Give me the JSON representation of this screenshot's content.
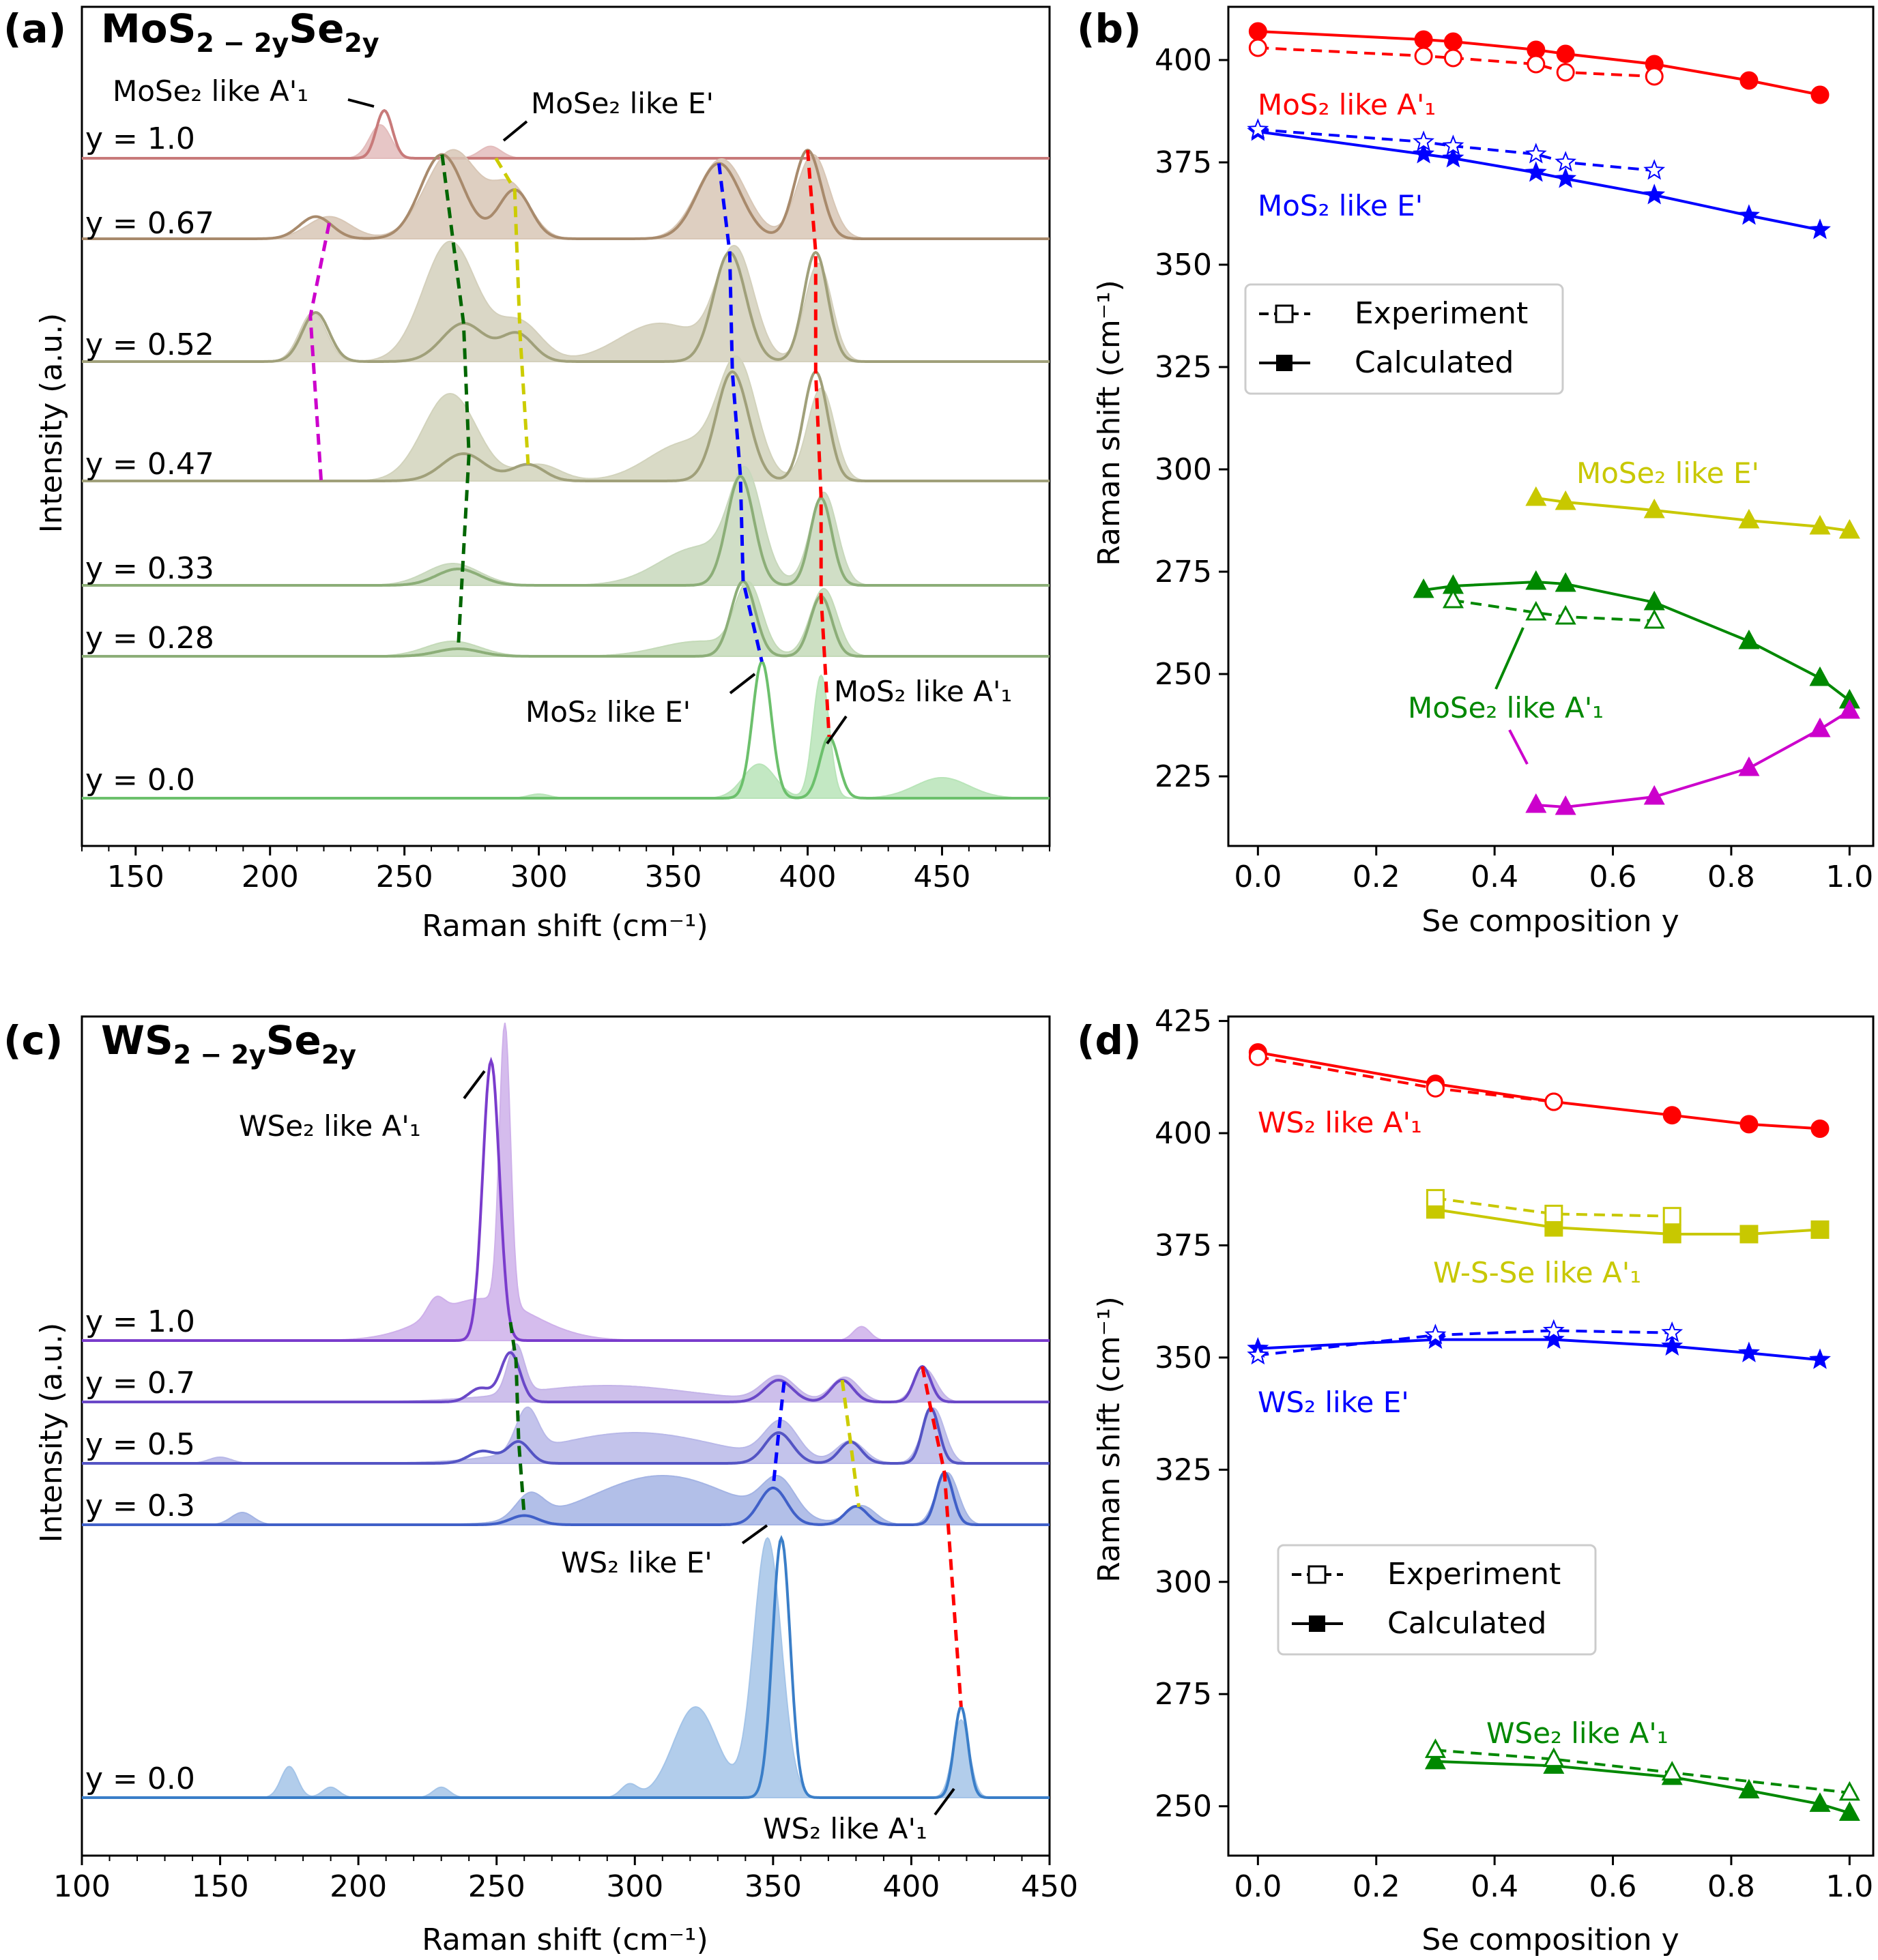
{
  "figure": {
    "panels": {
      "a": {
        "letter": "(a)",
        "title_main": "MoS",
        "title_sub1": "2 − 2y",
        "title_mid": "Se",
        "title_sub2": "2y"
      },
      "b": {
        "letter": "(b)"
      },
      "c": {
        "letter": "(c)",
        "title_main": "WS",
        "title_sub1": "2 − 2y",
        "title_mid": "Se",
        "title_sub2": "2y"
      },
      "d": {
        "letter": "(d)"
      }
    },
    "legend": {
      "experiment": "Experiment",
      "calculated": "Calculated"
    }
  },
  "chart_data": [
    {
      "id": "a",
      "type": "line",
      "xlabel": "Raman shift (cm⁻¹)",
      "ylabel": "Intensity (a.u.)",
      "xlim": [
        130,
        490
      ],
      "xticks": [
        150,
        200,
        250,
        300,
        350,
        400,
        450
      ],
      "offsets": [
        {
          "label": "y = 1.0",
          "color": "#c87a7a",
          "fill": "#e3bcbc",
          "peaks": [
            [
              242.5,
              1.0,
              3.0
            ]
          ],
          "fill_peaks": [
            [
              241,
              0.7,
              4
            ],
            [
              282,
              0.25,
              4
            ]
          ]
        },
        {
          "label": "y = 0.67",
          "color": "#a88a6c",
          "fill": "#d8c7b6",
          "peaks": [
            [
              217,
              0.25,
              6
            ],
            [
              264,
              0.95,
              8
            ],
            [
              291,
              0.55,
              6
            ],
            [
              367,
              0.85,
              8
            ],
            [
              400,
              1.0,
              5
            ]
          ],
          "fill_peaks": [
            [
              222,
              0.25,
              8
            ],
            [
              268,
              1.0,
              10
            ],
            [
              290,
              0.55,
              7
            ],
            [
              368,
              0.9,
              9
            ],
            [
              402,
              0.95,
              6
            ]
          ]
        },
        {
          "label": "y = 0.52",
          "color": "#a0a07a",
          "fill": "#d4d0bc",
          "peaks": [
            [
              217,
              0.45,
              5
            ],
            [
              272,
              0.35,
              8
            ],
            [
              292,
              0.25,
              6
            ],
            [
              371,
              1.0,
              6
            ],
            [
              403,
              1.0,
              4.5
            ]
          ],
          "fill_peaks": [
            [
              216,
              0.45,
              5
            ],
            [
              267,
              1.1,
              10
            ],
            [
              293,
              0.35,
              8
            ],
            [
              345,
              0.35,
              15
            ],
            [
              373,
              1.0,
              7
            ],
            [
              404,
              0.9,
              5
            ]
          ]
        },
        {
          "label": "y = 0.47",
          "color": "#a0a07a",
          "fill": "#d2d3bc",
          "peaks": [
            [
              272,
              0.25,
              8
            ],
            [
              296,
              0.15,
              6
            ],
            [
              372,
              1.0,
              6
            ],
            [
              403,
              1.0,
              4.5
            ]
          ],
          "fill_peaks": [
            [
              267,
              0.8,
              10
            ],
            [
              300,
              0.15,
              8
            ],
            [
              355,
              0.35,
              14
            ],
            [
              374,
              1.0,
              7
            ],
            [
              405,
              0.85,
              5
            ]
          ]
        },
        {
          "label": "y = 0.33",
          "color": "#8cae78",
          "fill": "#c8d8bc",
          "peaks": [
            [
              270,
              0.15,
              8
            ],
            [
              375,
              1.0,
              5
            ],
            [
              405,
              0.8,
              4
            ]
          ],
          "fill_peaks": [
            [
              268,
              0.2,
              10
            ],
            [
              360,
              0.35,
              15
            ],
            [
              377,
              0.9,
              6
            ],
            [
              406,
              0.85,
              5
            ]
          ]
        },
        {
          "label": "y = 0.28",
          "color": "#8cae78",
          "fill": "#c4dab8",
          "peaks": [
            [
              270,
              0.1,
              8
            ],
            [
              376,
              1.0,
              4.5
            ],
            [
              405,
              0.8,
              4
            ]
          ],
          "fill_peaks": [
            [
              268,
              0.2,
              10
            ],
            [
              360,
              0.2,
              15
            ],
            [
              378,
              0.9,
              5
            ],
            [
              406,
              0.9,
              5
            ]
          ]
        },
        {
          "label": "y = 0.0",
          "color": "#6cc06c",
          "fill": "#b8e4b8",
          "peaks": [
            [
              383,
              1.0,
              3.5
            ],
            [
              408,
              0.45,
              3.5
            ]
          ],
          "fill_peaks": [
            [
              382,
              0.25,
              6
            ],
            [
              405,
              0.9,
              3
            ],
            [
              450,
              0.15,
              10
            ],
            [
              300,
              0.03,
              4
            ]
          ]
        }
      ],
      "annotations": [
        "MoSe₂ like A'₁",
        "MoSe₂ like E'",
        "MoS₂ like E'",
        "MoS₂ like A'₁"
      ]
    },
    {
      "id": "b",
      "type": "line",
      "xlabel": "Se composition y",
      "ylabel": "Raman shift (cm⁻¹)",
      "xlim": [
        -0.05,
        1.04
      ],
      "ylim": [
        208,
        413
      ],
      "xticks": [
        0.0,
        0.2,
        0.4,
        0.6,
        0.8,
        1.0
      ],
      "yticks": [
        225,
        250,
        275,
        300,
        325,
        350,
        375,
        400
      ],
      "series": [
        {
          "name": "MoS₂ like A'₁",
          "color": "#ff0000",
          "marker": "circle",
          "calc": {
            "x": [
              0.0,
              0.28,
              0.33,
              0.47,
              0.52,
              0.67,
              0.83,
              0.95
            ],
            "y": [
              407,
              405,
              404.5,
              402.5,
              401.5,
              399,
              395,
              391.5
            ]
          },
          "exp": {
            "x": [
              0.0,
              0.28,
              0.33,
              0.47,
              0.52,
              0.67
            ],
            "y": [
              403,
              401,
              400.5,
              399,
              397,
              396
            ]
          }
        },
        {
          "name": "MoS₂ like E'",
          "color": "#0000ff",
          "marker": "star",
          "calc": {
            "x": [
              0.0,
              0.28,
              0.33,
              0.47,
              0.52,
              0.67,
              0.83,
              0.95
            ],
            "y": [
              382.5,
              377,
              376,
              372.5,
              371,
              367,
              362,
              358.5
            ]
          },
          "exp": {
            "x": [
              0.0,
              0.28,
              0.33,
              0.47,
              0.52,
              0.67
            ],
            "y": [
              383,
              380,
              379,
              377,
              375,
              373
            ]
          }
        },
        {
          "name": "MoSe₂ like E'",
          "color": "#c8c800",
          "marker": "triangle",
          "calc": {
            "x": [
              0.47,
              0.52,
              0.67,
              0.83,
              0.95,
              1.0
            ],
            "y": [
              293,
              292,
              290,
              287.5,
              286,
              285
            ]
          }
        },
        {
          "name": "MoSe₂ like A'₁",
          "color": "#008800",
          "marker": "triangle",
          "calc": {
            "x": [
              0.28,
              0.33,
              0.47,
              0.52,
              0.67,
              0.83,
              0.95,
              1.0
            ],
            "y": [
              270.5,
              271.5,
              272.5,
              272,
              267.5,
              258,
              249,
              243.5
            ]
          },
          "exp": {
            "x": [
              0.33,
              0.47,
              0.52,
              0.67
            ],
            "y": [
              268,
              265,
              264,
              263
            ]
          }
        },
        {
          "name": "",
          "color": "#cc00cc",
          "marker": "triangle",
          "calc": {
            "x": [
              0.47,
              0.52,
              0.67,
              0.83,
              0.95,
              1.0
            ],
            "y": [
              218,
              217.5,
              220,
              227,
              236.5,
              241
            ]
          }
        }
      ],
      "legend": "center-left"
    },
    {
      "id": "c",
      "type": "line",
      "xlabel": "Raman shift (cm⁻¹)",
      "ylabel": "Intensity (a.u.)",
      "xlim": [
        100,
        450
      ],
      "xticks": [
        100,
        150,
        200,
        250,
        300,
        350,
        400,
        450
      ],
      "offsets": [
        {
          "label": "y = 1.0",
          "color": "#7a3ccc",
          "fill": "#ceb0ea",
          "peaks": [
            [
              248,
              1.0,
              3.0
            ]
          ],
          "fill_peaks": [
            [
              253,
              1.0,
              2.0
            ],
            [
              245,
              0.15,
              18
            ],
            [
              228,
              0.06,
              3
            ],
            [
              382,
              0.05,
              3
            ]
          ]
        },
        {
          "label": "y = 0.7",
          "color": "#6a48c8",
          "fill": "#c4b4e8",
          "peaks": [
            [
              244,
              0.25,
              4
            ],
            [
              255,
              0.9,
              3.5
            ],
            [
              352,
              0.4,
              5
            ],
            [
              375,
              0.4,
              4
            ],
            [
              404,
              0.65,
              3
            ]
          ],
          "fill_peaks": [
            [
              257,
              0.9,
              3
            ],
            [
              290,
              0.3,
              30
            ],
            [
              352,
              0.45,
              6
            ],
            [
              376,
              0.45,
              5
            ],
            [
              405,
              0.6,
              4
            ]
          ]
        },
        {
          "label": "y = 0.5",
          "color": "#5454c4",
          "fill": "#b8b8e8",
          "peaks": [
            [
              245,
              0.2,
              5
            ],
            [
              258,
              0.35,
              4
            ],
            [
              352,
              0.5,
              5
            ],
            [
              378,
              0.35,
              4
            ],
            [
              407,
              0.9,
              3
            ]
          ],
          "fill_peaks": [
            [
              261,
              0.7,
              4
            ],
            [
              300,
              0.5,
              30
            ],
            [
              353,
              0.6,
              6
            ],
            [
              378,
              0.35,
              5
            ],
            [
              408,
              0.9,
              4
            ],
            [
              150,
              0.1,
              4
            ]
          ]
        },
        {
          "label": "y = 0.3",
          "color": "#4060c8",
          "fill": "#a4b4e4",
          "peaks": [
            [
              260,
              0.15,
              5
            ],
            [
              350,
              0.6,
              5
            ],
            [
              380,
              0.3,
              4
            ],
            [
              412,
              0.85,
              3
            ]
          ],
          "fill_peaks": [
            [
              262,
              0.4,
              5
            ],
            [
              310,
              0.8,
              25
            ],
            [
              352,
              0.6,
              6
            ],
            [
              382,
              0.3,
              5
            ],
            [
              413,
              0.85,
              4
            ],
            [
              158,
              0.2,
              4
            ]
          ]
        },
        {
          "label": "y = 0.0",
          "color": "#3a7ec8",
          "fill": "#a4c4e8",
          "peaks": [
            [
              353,
              1.0,
              3.2
            ],
            [
              418,
              0.35,
              2.5
            ]
          ],
          "fill_peaks": [
            [
              348,
              1.0,
              5
            ],
            [
              322,
              0.35,
              8
            ],
            [
              298,
              0.05,
              3
            ],
            [
              418,
              0.3,
              3
            ],
            [
              175,
              0.12,
              3
            ],
            [
              190,
              0.04,
              3
            ],
            [
              230,
              0.04,
              3
            ]
          ]
        }
      ],
      "annotations": [
        "WSe₂ like A'₁",
        "WS₂ like E'",
        "WS₂ like A'₁"
      ]
    },
    {
      "id": "d",
      "type": "line",
      "xlabel": "Se composition y",
      "ylabel": "Raman shift (cm⁻¹)",
      "xlim": [
        -0.05,
        1.04
      ],
      "ylim": [
        239,
        426
      ],
      "xticks": [
        0.0,
        0.2,
        0.4,
        0.6,
        0.8,
        1.0
      ],
      "yticks": [
        250,
        275,
        300,
        325,
        350,
        375,
        400,
        425
      ],
      "series": [
        {
          "name": "WS₂ like A'₁",
          "color": "#ff0000",
          "marker": "circle",
          "calc": {
            "x": [
              0.0,
              0.3,
              0.5,
              0.7,
              0.83,
              0.95
            ],
            "y": [
              418,
              411,
              407,
              404,
              402,
              401
            ]
          },
          "exp": {
            "x": [
              0.0,
              0.3,
              0.5
            ],
            "y": [
              417,
              410,
              407
            ]
          }
        },
        {
          "name": "W-S-Se like A'₁",
          "color": "#c8c800",
          "marker": "square",
          "calc": {
            "x": [
              0.3,
              0.5,
              0.7,
              0.83,
              0.95
            ],
            "y": [
              383,
              379,
              377.5,
              377.5,
              378.5
            ]
          },
          "exp": {
            "x": [
              0.3,
              0.5,
              0.7
            ],
            "y": [
              385.5,
              382,
              381.5
            ]
          }
        },
        {
          "name": "WS₂ like E'",
          "color": "#0000ff",
          "marker": "star",
          "calc": {
            "x": [
              0.0,
              0.3,
              0.5,
              0.7,
              0.83,
              0.95
            ],
            "y": [
              352,
              354,
              354,
              352.5,
              351,
              349.5
            ]
          },
          "exp": {
            "x": [
              0.0,
              0.3,
              0.5,
              0.7
            ],
            "y": [
              350.5,
              355,
              356,
              355.5
            ]
          }
        },
        {
          "name": "WSe₂ like A'₁",
          "color": "#008800",
          "marker": "triangle",
          "calc": {
            "x": [
              0.3,
              0.5,
              0.7,
              0.83,
              0.95,
              1.0
            ],
            "y": [
              260,
              259,
              256.5,
              253.5,
              250.5,
              248.5
            ]
          },
          "exp": {
            "x": [
              0.3,
              0.5,
              0.7,
              1.0
            ],
            "y": [
              262.5,
              260.5,
              257.5,
              253
            ]
          }
        }
      ],
      "legend": "center-left"
    }
  ]
}
